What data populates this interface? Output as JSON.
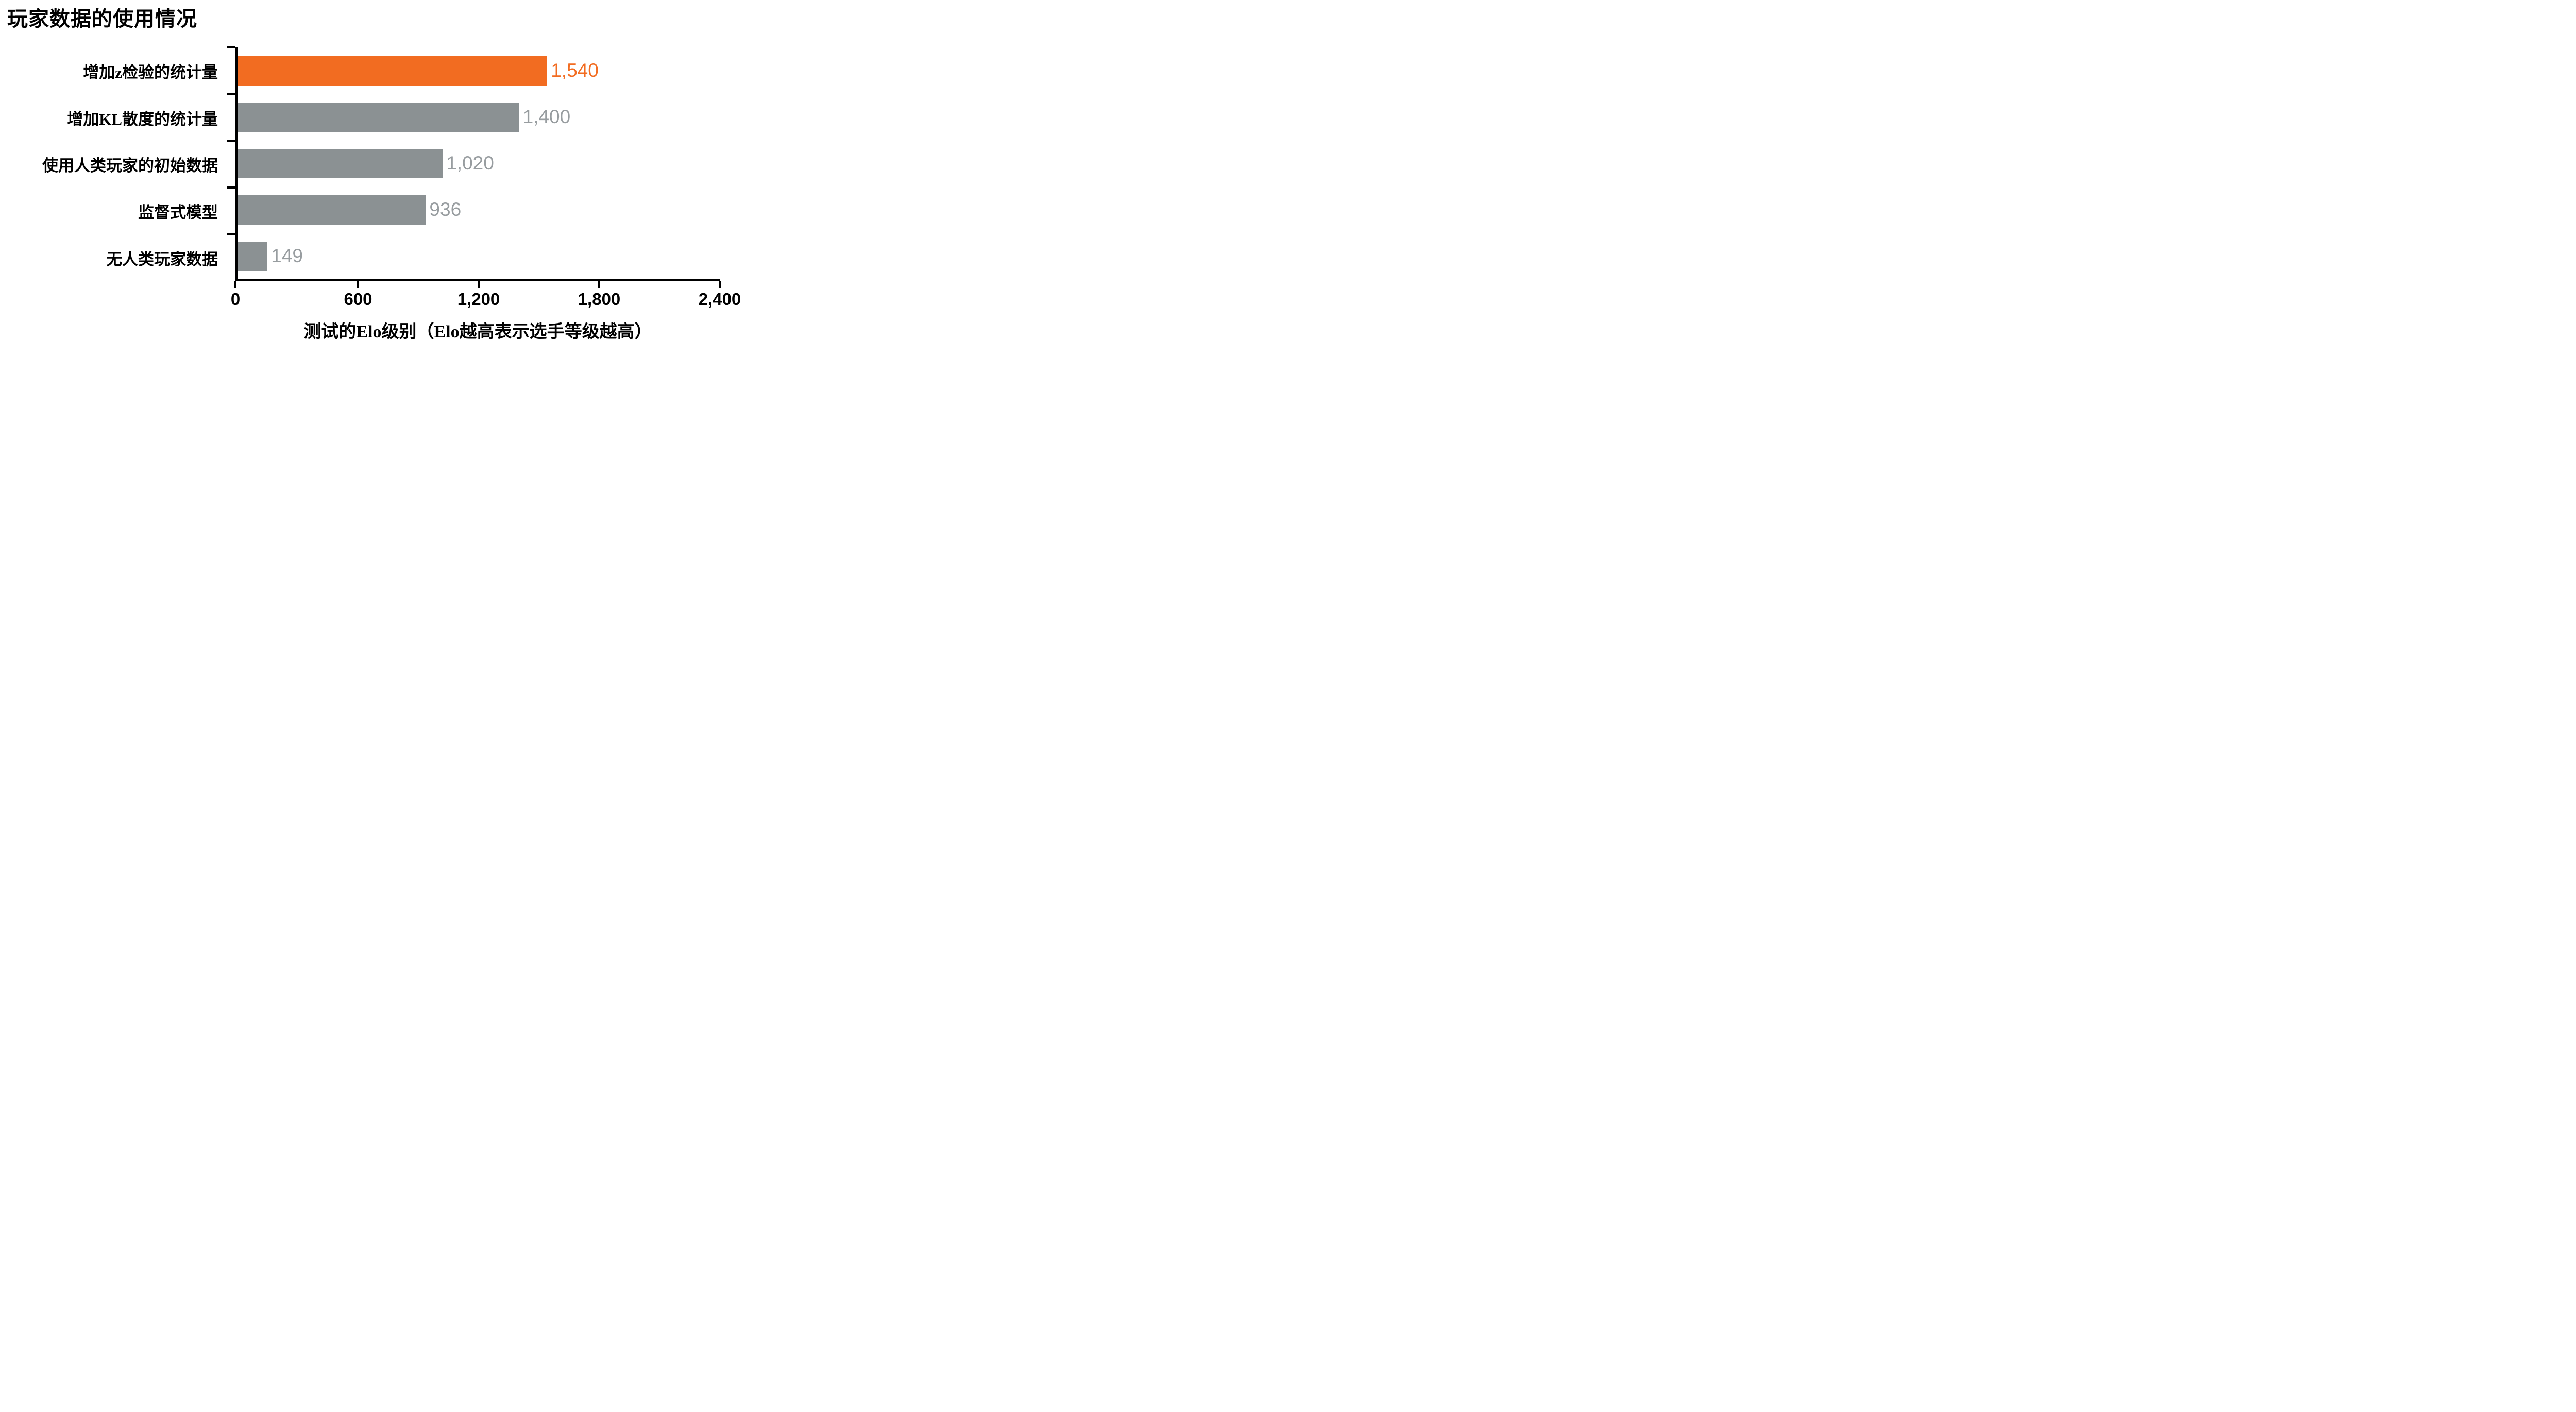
{
  "title": "玩家数据的使用情况",
  "chart_data": {
    "type": "bar",
    "orientation": "horizontal",
    "title": "玩家数据的使用情况",
    "categories": [
      "增加z检验的统计量",
      "增加KL散度的统计量",
      "使用人类玩家的初始数据",
      "监督式模型",
      "无人类玩家数据"
    ],
    "values": [
      1540,
      1400,
      1020,
      936,
      149
    ],
    "value_labels": [
      "1,540",
      "1,400",
      "1,020",
      "936",
      "149"
    ],
    "highlight_index": 0,
    "xlabel": "测试的Elo级别（Elo越高表示选手等级越高）",
    "ylabel": "",
    "xlim": [
      0,
      2400
    ],
    "xticks": [
      0,
      600,
      1200,
      1800,
      2400
    ],
    "xtick_labels": [
      "0",
      "600",
      "1,200",
      "1,800",
      "2,400"
    ],
    "grid": false,
    "legend": "none",
    "colors": {
      "highlight": "#F26C21",
      "bar": "#8B9193",
      "highlight_value": "#F26C21",
      "value": "#989DA0",
      "axis": "#000000"
    }
  }
}
